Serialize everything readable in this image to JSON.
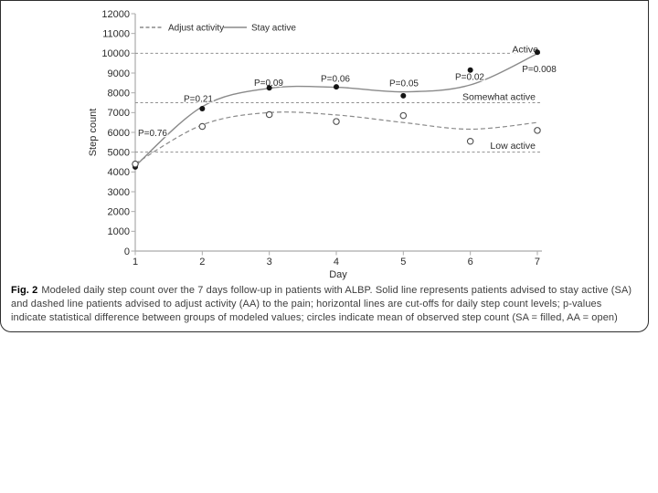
{
  "figure": {
    "caption_label": "Fig. 2",
    "caption_text": "Modeled daily step count over the 7 days follow-up in patients with ALBP. Solid line represents patients advised to stay active (SA) and dashed line patients advised to adjust activity (AA) to the pain; horizontal lines are cut-offs for daily step count levels; p-values indicate statistical difference between groups of modeled values; circles indicate mean of observed step count (SA = filled, AA = open)"
  },
  "chart_data": {
    "type": "line",
    "xlabel": "Day",
    "ylabel": "Step count",
    "x": [
      1,
      2,
      3,
      4,
      5,
      6,
      7
    ],
    "ylim": [
      0,
      12000
    ],
    "yticks": [
      0,
      1000,
      2000,
      3000,
      4000,
      5000,
      6000,
      7000,
      8000,
      9000,
      10000,
      11000,
      12000
    ],
    "grid": "off",
    "legend_position": "top-left-inside",
    "legend": [
      {
        "label": "Adjust activity",
        "style": "dashed"
      },
      {
        "label": "Stay active",
        "style": "solid"
      }
    ],
    "series": [
      {
        "name": "Stay active (modeled)",
        "style": "solid",
        "values": [
          4300,
          7300,
          8230,
          8280,
          8050,
          8400,
          9980
        ]
      },
      {
        "name": "Adjust activity (modeled)",
        "style": "dashed",
        "values": [
          4420,
          6380,
          7000,
          6880,
          6500,
          6160,
          6500
        ]
      },
      {
        "name": "Stay active observed mean",
        "marker": "filled",
        "values": [
          4250,
          7200,
          8250,
          8300,
          7850,
          9150,
          10050
        ]
      },
      {
        "name": "Adjust activity observed mean",
        "marker": "open",
        "values": [
          4400,
          6300,
          6900,
          6550,
          6850,
          5550,
          6100
        ]
      }
    ],
    "p_values": [
      "P=0.76",
      "P=0.21",
      "P=0.09",
      "P=0.06",
      "P=0.05",
      "P=0.02",
      "P=0.008"
    ],
    "cutoffs": [
      {
        "label": "Active",
        "value": 10000
      },
      {
        "label": "Somewhat active",
        "value": 7500
      },
      {
        "label": "Low active",
        "value": 5000
      }
    ],
    "colors": {
      "curve_gray": "#8a8a8a",
      "cutoff_gray": "#909090",
      "axis_gray": "#ababab",
      "point_black": "#141414",
      "text_dark": "#2b2b2b"
    }
  }
}
